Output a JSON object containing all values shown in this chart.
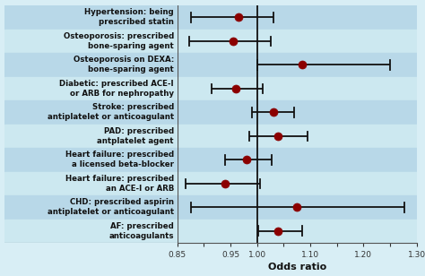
{
  "labels": [
    "Hypertension: being\nprescribed statin",
    "Osteoporosis: prescribed\nbone-sparing agent",
    "Osteoporosis on DEXA:\nbone-sparing agent",
    "Diabetic: prescribed ACE-I\nor ARB for nephropathy",
    "Stroke: prescribed\nantiplatelet or anticoagulant",
    "PAD: prescribed\nantplatelet agent",
    "Heart failure: prescribed\na licensed beta-blocker",
    "Heart failure: prescribed\nan ACE-I or ARB",
    "CHD: prescribed aspirin\nantiplatelet or anticoagulant",
    "AF: prescribed\nanticoagulants"
  ],
  "point_estimates": [
    0.965,
    0.955,
    1.085,
    0.96,
    1.03,
    1.04,
    0.98,
    0.94,
    1.075,
    1.04
  ],
  "ci_lower": [
    0.875,
    0.872,
    1.0,
    0.915,
    0.99,
    0.985,
    0.94,
    0.865,
    0.875,
    1.002
  ],
  "ci_upper": [
    1.03,
    1.025,
    1.25,
    1.01,
    1.07,
    1.095,
    1.028,
    1.005,
    1.278,
    1.085
  ],
  "xlim": [
    0.85,
    1.3
  ],
  "xticks": [
    0.85,
    0.9,
    0.95,
    1.0,
    1.05,
    1.1,
    1.15,
    1.2,
    1.25,
    1.3
  ],
  "xtick_labels": [
    "0.85",
    "",
    "0.95",
    "1.00",
    "",
    "1.10",
    "",
    "1.20",
    "",
    "1.30"
  ],
  "xlabel": "Odds ratio",
  "vline": 1.0,
  "dot_color": "#8B0000",
  "line_color": "#111111",
  "background_color": "#d8eef5",
  "stripe_color_light": "#cce8f0",
  "stripe_color_dark": "#b8d8e8",
  "label_color": "#111111",
  "label_fontsize": 6.2,
  "figsize": [
    4.74,
    3.08
  ],
  "dpi": 100
}
